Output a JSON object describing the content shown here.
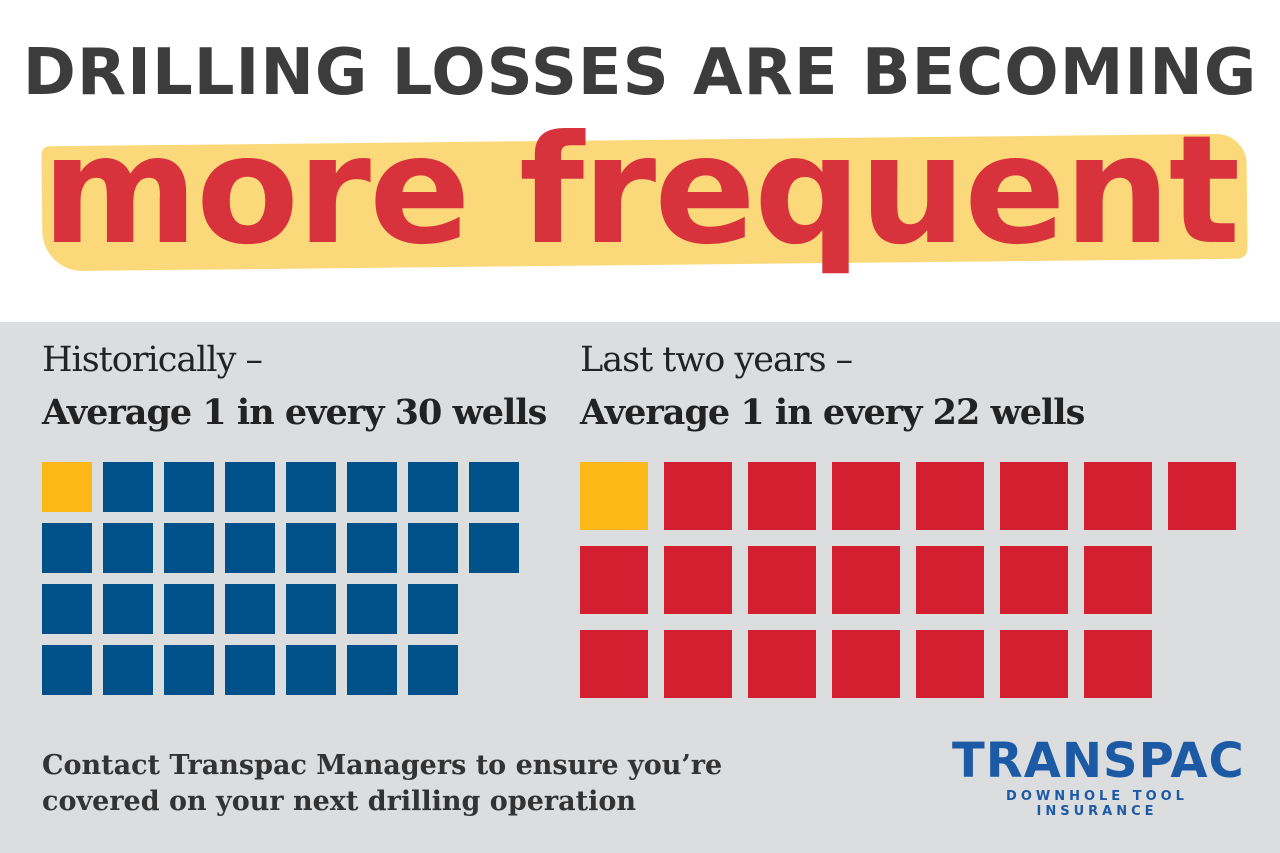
{
  "header": {
    "title": "DRILLING LOSSES ARE BECOMING",
    "highlight": "more frequent"
  },
  "panels": [
    {
      "label": "Historically –",
      "stat": "Average 1 in every 30 wells",
      "total": 30,
      "highlighted": 1,
      "color": "#00508a",
      "highlight_color": "#fbb817"
    },
    {
      "label": "Last two years –",
      "stat": "Average 1 in every 22 wells",
      "total": 22,
      "highlighted": 1,
      "color": "#d31f2f",
      "highlight_color": "#fbb817"
    }
  ],
  "footer": {
    "line1": "Contact Transpac Managers to ensure you’re",
    "line2": "covered on your next drilling operation"
  },
  "logo": {
    "name": "TRANSPAC",
    "tagline": "DOWNHOLE TOOL INSURANCE"
  }
}
